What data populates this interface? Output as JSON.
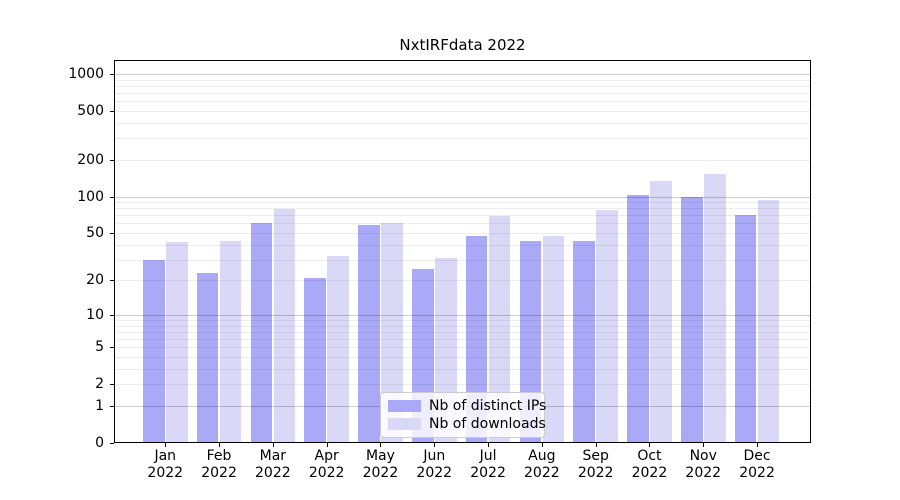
{
  "title": "NxtIRFdata 2022",
  "chart_data": {
    "type": "bar",
    "title": "NxtIRFdata 2022",
    "months": [
      "Jan",
      "Feb",
      "Mar",
      "Apr",
      "May",
      "Jun",
      "Jul",
      "Aug",
      "Sep",
      "Oct",
      "Nov",
      "Dec"
    ],
    "year_label": "2022",
    "series": [
      {
        "name": "Nb of distinct IPs",
        "color": "#a9a9f7",
        "values": [
          30,
          23,
          61,
          21,
          58,
          25,
          47,
          43,
          43,
          102,
          100,
          71
        ]
      },
      {
        "name": "Nb of downloads",
        "color": "#d9d9f7",
        "values": [
          42,
          43,
          79,
          32,
          61,
          31,
          69,
          47,
          77,
          135,
          153,
          94
        ]
      }
    ],
    "yticks": [
      0,
      1,
      2,
      5,
      10,
      20,
      50,
      100,
      200,
      500,
      1000
    ],
    "ylim": [
      0,
      1300
    ],
    "scale": "log10(1+x)",
    "grid": true,
    "legend_position": "lower center",
    "axis_color": "#000000",
    "background_color": "#ffffff"
  }
}
